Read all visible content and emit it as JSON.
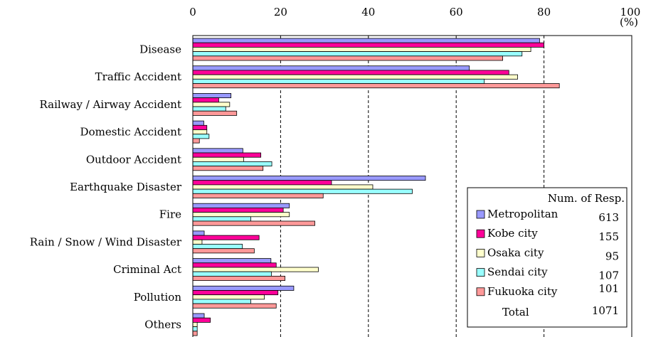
{
  "chart_data": {
    "type": "bar",
    "orientation": "horizontal",
    "unit_label": "(%)",
    "xlim": [
      0,
      100
    ],
    "x_ticks": [
      "0",
      "20",
      "40",
      "60",
      "80",
      "100"
    ],
    "grid": "vertical dashed at 20, 40, 60, 80",
    "categories": [
      "Disease",
      "Traffic Accident",
      "Railway / Airway Accident",
      "Domestic Accident",
      "Outdoor Accident",
      "Earthquake Disaster",
      "Fire",
      "Rain / Snow / Wind Disaster",
      "Criminal Act",
      "Pollution",
      "Others"
    ],
    "series": [
      {
        "name": "Metropolitan",
        "color": "#9999ff",
        "responses": "613",
        "values": [
          79,
          63,
          8.7,
          2.5,
          11.4,
          53,
          22,
          2.6,
          17.8,
          23,
          2.6
        ]
      },
      {
        "name": "Kobe city",
        "color": "#ff0099",
        "responses": "155",
        "values": [
          80,
          72,
          5.9,
          3.2,
          15.5,
          31.6,
          20.6,
          15.1,
          19,
          19.4,
          4
        ]
      },
      {
        "name": "Osaka city",
        "color": "#ffffcc",
        "responses": "95",
        "values": [
          77,
          74,
          8.4,
          3.2,
          11.6,
          41,
          22,
          2.1,
          28.6,
          16.3,
          1
        ]
      },
      {
        "name": "Sendai city",
        "color": "#99ffff",
        "responses": "107",
        "values": [
          75,
          66.4,
          7.5,
          3.7,
          18,
          50,
          13.2,
          11.3,
          17.9,
          13.2,
          1
        ]
      },
      {
        "name": "Fukuoka city",
        "color": "#ff9999",
        "responses": "101",
        "values": [
          70.6,
          83.5,
          10,
          1.5,
          16,
          29.7,
          27.8,
          14,
          21,
          19,
          1
        ]
      }
    ],
    "legend": {
      "header": "Num. of Resp.",
      "total_label": "Total",
      "total_value": "1071",
      "placement": "bottom-right"
    }
  }
}
